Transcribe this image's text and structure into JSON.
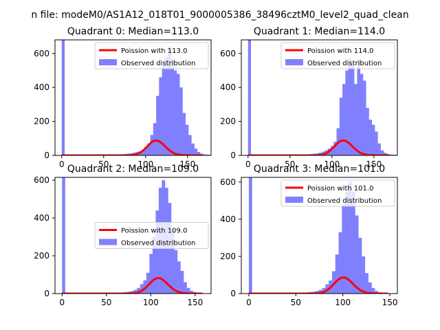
{
  "figure": {
    "suptitle": "n file: modeM0/AS1A12_018T01_9000005386_38496cztM0_level2_quad_clean"
  },
  "colors": {
    "hist": "#8080ff",
    "fit": "#ff0000"
  },
  "chart_data": [
    {
      "type": "bar",
      "title": "Quadrant 0: Median=113.0",
      "xlim": [
        -8,
        178
      ],
      "ylim": [
        0,
        680
      ],
      "xticks": [
        0,
        50,
        100,
        150
      ],
      "yticks": [
        0,
        200,
        400,
        600
      ],
      "legend": {
        "placement": "top-right",
        "entries": [
          "Poission with 113.0",
          "Observed distribution"
        ]
      },
      "zero_bin": {
        "x0": 0,
        "x1": 3.5,
        "count": 680
      },
      "bins_x0": 60,
      "bin_width": 3.5,
      "counts": [
        3,
        4,
        5,
        6,
        8,
        10,
        12,
        16,
        20,
        25,
        32,
        48,
        70,
        120,
        190,
        350,
        460,
        530,
        580,
        640,
        560,
        500,
        480,
        400,
        250,
        180,
        120,
        70,
        40,
        20,
        10,
        6,
        4,
        3
      ],
      "poisson": {
        "mu": 113.0,
        "x_range": [
          0,
          168
        ],
        "scale": 2330
      }
    },
    {
      "type": "bar",
      "title": "Quadrant 1: Median=114.0",
      "xlim": [
        -8,
        178
      ],
      "ylim": [
        0,
        680
      ],
      "xticks": [
        0,
        50,
        100,
        150
      ],
      "yticks": [
        0,
        200,
        400,
        600
      ],
      "legend": {
        "placement": "top-right",
        "entries": [
          "Poission with 114.0",
          "Observed distribution"
        ]
      },
      "zero_bin": {
        "x0": 0,
        "x1": 3.5,
        "count": 680
      },
      "bins_x0": 60,
      "bin_width": 3.5,
      "counts": [
        3,
        4,
        5,
        6,
        8,
        10,
        12,
        16,
        22,
        30,
        40,
        55,
        80,
        160,
        340,
        420,
        500,
        570,
        540,
        420,
        560,
        480,
        440,
        280,
        210,
        180,
        140,
        70,
        30,
        15,
        8,
        5,
        4,
        3
      ],
      "poisson": {
        "mu": 114.0,
        "x_range": [
          0,
          168
        ],
        "scale": 2350
      }
    },
    {
      "type": "bar",
      "title": "Quadrant 2: Median=109.0",
      "xlim": [
        -8,
        168
      ],
      "ylim": [
        0,
        615
      ],
      "xticks": [
        0,
        50,
        100,
        150
      ],
      "yticks": [
        0,
        200,
        400,
        600
      ],
      "legend": {
        "placement": "center-right",
        "entries": [
          "Poission with 109.0",
          "Observed distribution"
        ]
      },
      "zero_bin": {
        "x0": 0,
        "x1": 3.5,
        "count": 615
      },
      "bins_x0": 60,
      "bin_width": 3.5,
      "counts": [
        4,
        5,
        6,
        8,
        10,
        14,
        20,
        30,
        50,
        70,
        110,
        210,
        300,
        440,
        560,
        600,
        560,
        480,
        340,
        230,
        170,
        120,
        60,
        30,
        15,
        8,
        5,
        4
      ],
      "poisson": {
        "mu": 109.0,
        "x_range": [
          0,
          158
        ],
        "scale": 2150
      }
    },
    {
      "type": "bar",
      "title": "Quadrant 3: Median=101.0",
      "xlim": [
        -8,
        158
      ],
      "ylim": [
        0,
        625
      ],
      "xticks": [
        0,
        50,
        100,
        150
      ],
      "yticks": [
        0,
        200,
        400,
        600
      ],
      "legend": {
        "placement": "top-right",
        "entries": [
          "Poission with 101.0",
          "Observed distribution"
        ]
      },
      "zero_bin": {
        "x0": 0,
        "x1": 3.5,
        "count": 625
      },
      "bins_x0": 50,
      "bin_width": 3.5,
      "counts": [
        3,
        4,
        5,
        6,
        8,
        10,
        14,
        20,
        30,
        50,
        70,
        120,
        210,
        330,
        480,
        550,
        600,
        550,
        420,
        300,
        200,
        110,
        60,
        30,
        14,
        7,
        4,
        3
      ],
      "poisson": {
        "mu": 101.0,
        "x_range": [
          0,
          148
        ],
        "scale": 2180
      }
    }
  ]
}
